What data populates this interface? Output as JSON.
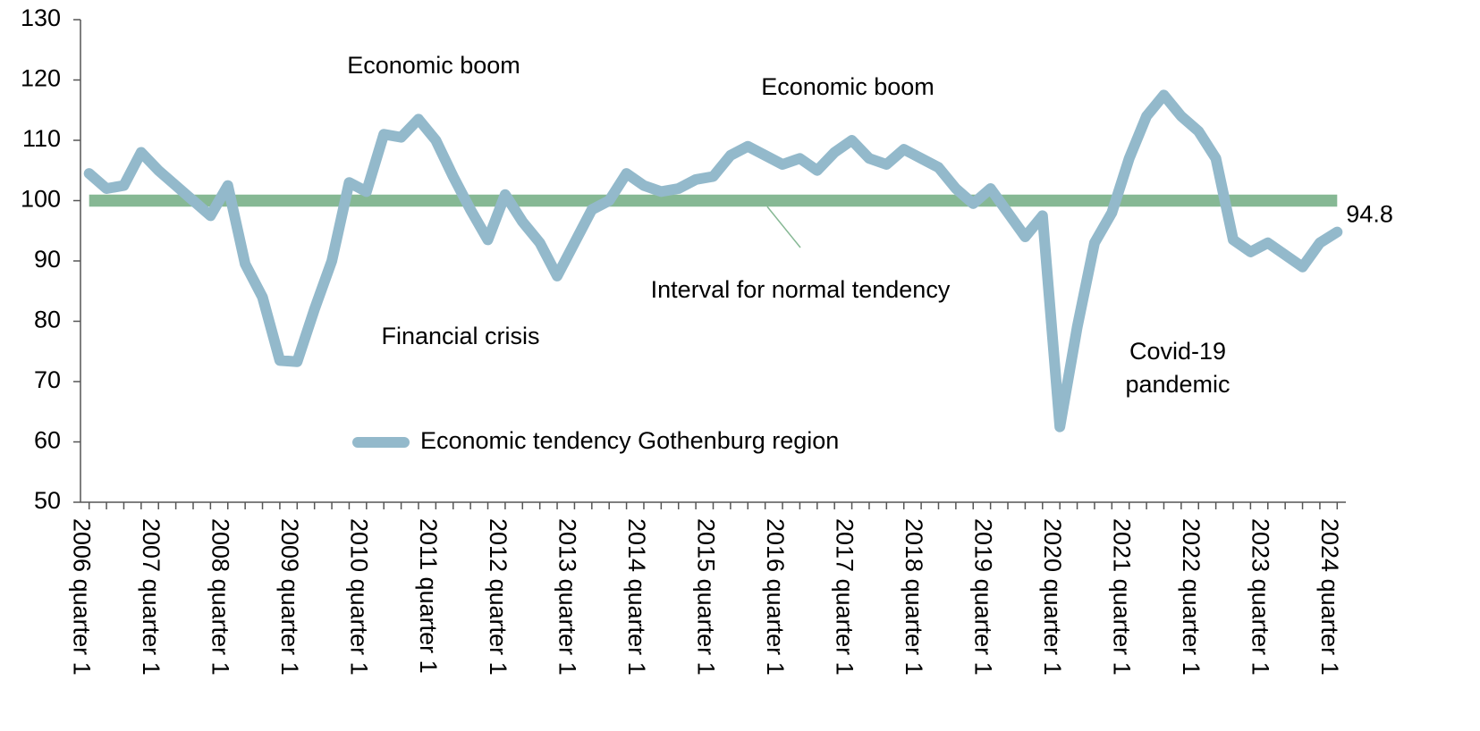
{
  "chart_data": {
    "type": "line",
    "categories": [
      "2006 quarter 1",
      null,
      null,
      null,
      "2007 quarter 1",
      null,
      null,
      null,
      "2008 quarter 1",
      null,
      null,
      null,
      "2009 quarter 1",
      null,
      null,
      null,
      "2010 quarter 1",
      null,
      null,
      null,
      "2011 quarter 1",
      null,
      null,
      null,
      "2012 quarter 1",
      null,
      null,
      null,
      "2013 quarter 1",
      null,
      null,
      null,
      "2014 quarter 1",
      null,
      null,
      null,
      "2015 quarter 1",
      null,
      null,
      null,
      "2016 quarter 1",
      null,
      null,
      null,
      "2017 quarter 1",
      null,
      null,
      null,
      "2018 quarter 1",
      null,
      null,
      null,
      "2019 quarter 1",
      null,
      null,
      null,
      "2020 quarter 1",
      null,
      null,
      null,
      "2021 quarter 1",
      null,
      null,
      null,
      "2022 quarter 1",
      null,
      null,
      null,
      "2023 quarter 1",
      null,
      null,
      null,
      "2024 quarter 1"
    ],
    "series": [
      {
        "name": "Economic tendency Gothenburg region",
        "color": "#93b9cb",
        "values": [
          104.5,
          102,
          102.5,
          108,
          105,
          102.5,
          100,
          97.5,
          102.5,
          89.5,
          84,
          73.5,
          73.3,
          82,
          90,
          103,
          101.5,
          111,
          110.5,
          113.5,
          110,
          104,
          98.5,
          93.5,
          101,
          96.5,
          93,
          87.5,
          93,
          98.5,
          100,
          104.5,
          102.5,
          101.5,
          102,
          103.5,
          104,
          107.5,
          109,
          107.5,
          106,
          107,
          105,
          108,
          110,
          107,
          106,
          108.5,
          107,
          105.5,
          102,
          99.5,
          102,
          98,
          94,
          97.5,
          62.5,
          79,
          93,
          98,
          107,
          114,
          117.5,
          114,
          111.5,
          107,
          93.5,
          91.5,
          93,
          91,
          89,
          93,
          94.8
        ]
      }
    ],
    "reference_band": {
      "from": 99,
      "to": 101,
      "color": "#86b894",
      "label": "Interval for normal tendency"
    },
    "annotations": [
      "Economic boom",
      "Economic boom",
      "Financial crisis",
      "Covid-19",
      "pandemic"
    ],
    "ylim": [
      50,
      130
    ],
    "yticks": [
      50,
      60,
      70,
      80,
      90,
      100,
      110,
      120,
      130
    ],
    "grid": false,
    "legend": "lower-left"
  }
}
